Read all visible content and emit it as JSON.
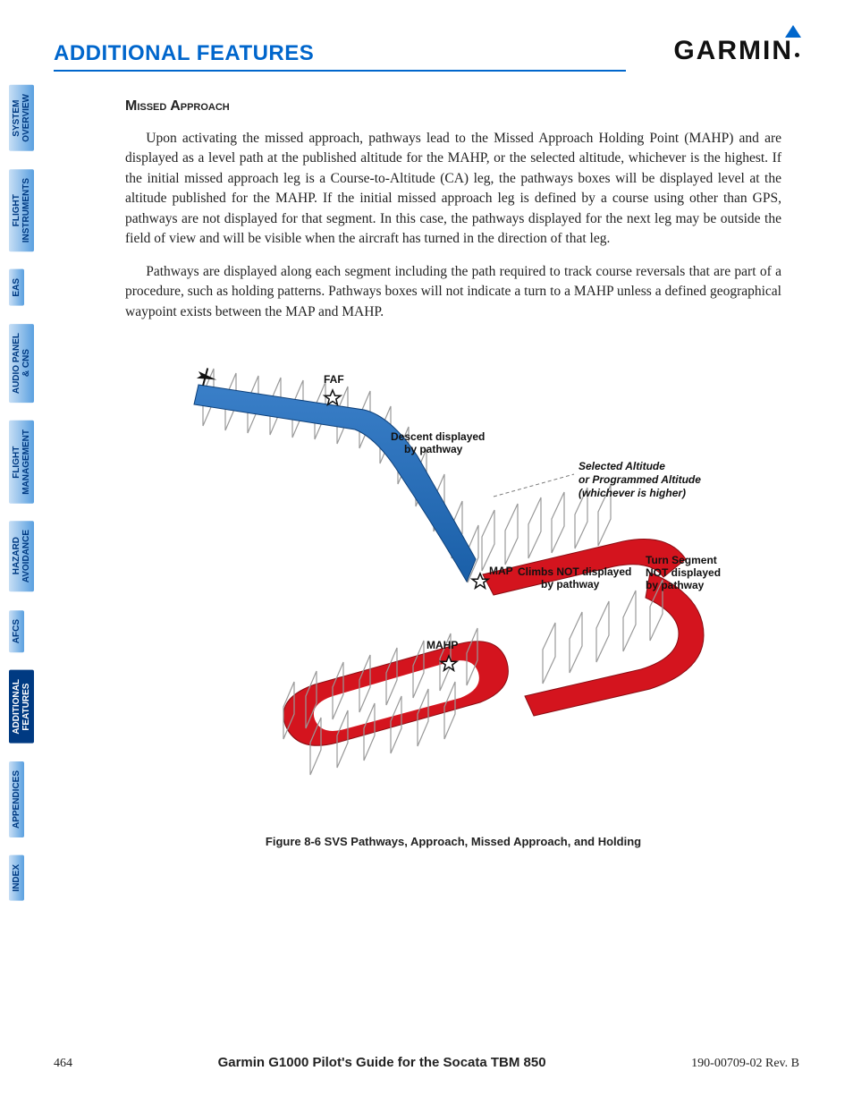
{
  "header": {
    "section_title": "ADDITIONAL FEATURES",
    "logo_text": "GARMIN"
  },
  "sidebar": {
    "tabs": [
      {
        "label": "SYSTEM\nOVERVIEW",
        "active": false
      },
      {
        "label": "FLIGHT\nINSTRUMENTS",
        "active": false
      },
      {
        "label": "EAS",
        "active": false
      },
      {
        "label": "AUDIO PANEL\n& CNS",
        "active": false
      },
      {
        "label": "FLIGHT\nMANAGEMENT",
        "active": false
      },
      {
        "label": "HAZARD\nAVOIDANCE",
        "active": false
      },
      {
        "label": "AFCS",
        "active": false
      },
      {
        "label": "ADDITIONAL\nFEATURES",
        "active": true
      },
      {
        "label": "APPENDICES",
        "active": false
      },
      {
        "label": "INDEX",
        "active": false
      }
    ]
  },
  "body": {
    "subhead": "Missed Approach",
    "para1": "Upon activating the missed approach, pathways lead to the Missed Approach Holding Point (MAHP) and are displayed as a level path at the published altitude for the MAHP, or the selected altitude, whichever is the highest.  If the initial missed approach leg is a Course-to-Altitude (CA) leg, the pathways boxes will be displayed level at the altitude published for the MAHP.  If the initial missed approach leg is defined by a course using other than GPS, pathways are not displayed for that segment.  In this case, the pathways displayed for the next leg may be outside the field of view and will be visible when the aircraft has turned in the direction of that leg.",
    "para2": "Pathways are displayed along each segment including the path required to track course reversals that are part of a procedure, such as holding patterns.  Pathways boxes will not indicate a turn to a MAHP unless a defined geographical waypoint exists between the MAP and MAHP."
  },
  "figure": {
    "caption": "Figure 8-6  SVS Pathways, Approach, Missed Approach, and Holding",
    "labels": {
      "faf": "FAF",
      "descent_l1": "Descent displayed",
      "descent_l2": "by pathway",
      "sel_alt_l1": "Selected Altitude",
      "sel_alt_l2": "or Programmed Altitude",
      "sel_alt_l3": "(whichever is higher)",
      "map": "MAP",
      "climbs_l1": "Climbs NOT displayed",
      "climbs_l2": "by pathway",
      "turn_l1": "Turn Segment",
      "turn_l2": "NOT displayed",
      "turn_l3": "by pathway",
      "mahp": "MAHP"
    },
    "colors": {
      "approach_path": "#1a5fa8",
      "approach_path_light": "#3a7fc8",
      "missed_path": "#d4141e",
      "box_stroke": "#999999",
      "box_fill": "#f0f0f0",
      "dash": "#777777"
    }
  },
  "footer": {
    "page": "464",
    "manual": "Garmin G1000 Pilot's Guide for the Socata TBM 850",
    "rev": "190-00709-02  Rev. B"
  }
}
